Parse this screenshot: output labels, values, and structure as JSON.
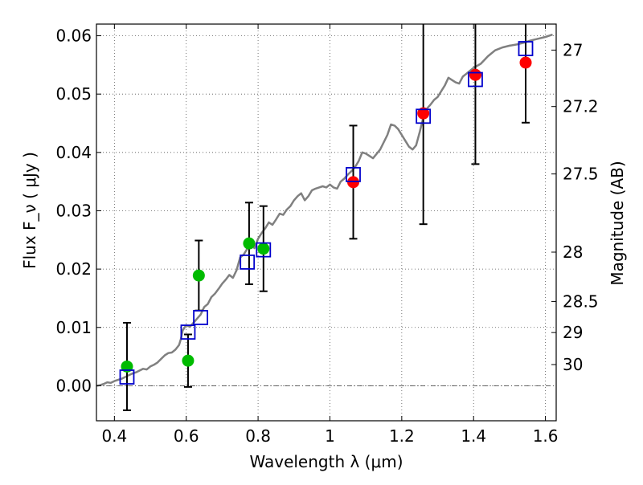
{
  "chart_data": {
    "type": "scatter",
    "xlabel": "Wavelength  λ (μm)",
    "ylabel": "Flux  F_ν  ( μJy )",
    "y2label": "Magnitude (AB)",
    "xlim": [
      0.35,
      1.63
    ],
    "ylim": [
      -0.006,
      0.062
    ],
    "grid": true,
    "x_ticks": [
      {
        "value": 0.4,
        "label": "0.4"
      },
      {
        "value": 0.6,
        "label": "0.6"
      },
      {
        "value": 0.8,
        "label": "0.8"
      },
      {
        "value": 1.0,
        "label": "1"
      },
      {
        "value": 1.2,
        "label": "1.2"
      },
      {
        "value": 1.4,
        "label": "1.4"
      },
      {
        "value": 1.6,
        "label": "1.6"
      }
    ],
    "y_ticks": [
      {
        "value": 0.0,
        "label": "0.00"
      },
      {
        "value": 0.01,
        "label": "0.01"
      },
      {
        "value": 0.02,
        "label": "0.02"
      },
      {
        "value": 0.03,
        "label": "0.03"
      },
      {
        "value": 0.04,
        "label": "0.04"
      },
      {
        "value": 0.05,
        "label": "0.05"
      },
      {
        "value": 0.06,
        "label": "0.06"
      }
    ],
    "y2_ticks": [
      {
        "value": 27,
        "label": "27"
      },
      {
        "value": 27.2,
        "label": "27.2"
      },
      {
        "value": 27.5,
        "label": "27.5"
      },
      {
        "value": 28,
        "label": "28"
      },
      {
        "value": 28.5,
        "label": "28.5"
      },
      {
        "value": 29,
        "label": "29"
      },
      {
        "value": 30,
        "label": "30"
      }
    ],
    "model_sed": {
      "color": "#808080",
      "x": [
        0.35,
        0.36,
        0.37,
        0.38,
        0.39,
        0.4,
        0.41,
        0.42,
        0.43,
        0.44,
        0.45,
        0.46,
        0.47,
        0.48,
        0.49,
        0.5,
        0.51,
        0.52,
        0.53,
        0.54,
        0.55,
        0.56,
        0.57,
        0.58,
        0.585,
        0.59,
        0.6,
        0.61,
        0.62,
        0.63,
        0.64,
        0.65,
        0.66,
        0.67,
        0.68,
        0.69,
        0.7,
        0.71,
        0.72,
        0.73,
        0.74,
        0.75,
        0.76,
        0.77,
        0.78,
        0.79,
        0.8,
        0.81,
        0.82,
        0.83,
        0.84,
        0.85,
        0.86,
        0.87,
        0.88,
        0.89,
        0.9,
        0.91,
        0.92,
        0.93,
        0.94,
        0.95,
        0.96,
        0.97,
        0.98,
        0.99,
        1.0,
        1.01,
        1.02,
        1.03,
        1.04,
        1.05,
        1.06,
        1.07,
        1.08,
        1.09,
        1.1,
        1.12,
        1.14,
        1.16,
        1.17,
        1.18,
        1.19,
        1.2,
        1.21,
        1.22,
        1.23,
        1.24,
        1.25,
        1.26,
        1.27,
        1.28,
        1.29,
        1.3,
        1.31,
        1.32,
        1.33,
        1.34,
        1.35,
        1.36,
        1.37,
        1.38,
        1.39,
        1.4,
        1.42,
        1.44,
        1.46,
        1.48,
        1.5,
        1.52,
        1.54,
        1.56,
        1.58,
        1.6,
        1.62
      ],
      "y": [
        0.0,
        0.0001,
        0.0003,
        0.0006,
        0.0005,
        0.0008,
        0.001,
        0.0012,
        0.0015,
        0.0018,
        0.0021,
        0.0023,
        0.0026,
        0.0029,
        0.0028,
        0.0033,
        0.0036,
        0.004,
        0.0046,
        0.0052,
        0.0056,
        0.0057,
        0.0062,
        0.007,
        0.008,
        0.0095,
        0.0104,
        0.0101,
        0.0108,
        0.0115,
        0.0122,
        0.0135,
        0.014,
        0.0152,
        0.0158,
        0.0166,
        0.0175,
        0.0182,
        0.019,
        0.0185,
        0.0198,
        0.022,
        0.0225,
        0.0235,
        0.0243,
        0.0236,
        0.0252,
        0.0262,
        0.027,
        0.028,
        0.0276,
        0.0285,
        0.0295,
        0.0293,
        0.0302,
        0.0308,
        0.0318,
        0.0325,
        0.033,
        0.0318,
        0.0325,
        0.0335,
        0.0338,
        0.034,
        0.0342,
        0.034,
        0.0345,
        0.034,
        0.0338,
        0.035,
        0.0355,
        0.0362,
        0.0368,
        0.0375,
        0.0385,
        0.04,
        0.0398,
        0.039,
        0.0405,
        0.043,
        0.0448,
        0.0446,
        0.044,
        0.043,
        0.042,
        0.041,
        0.0405,
        0.0412,
        0.0435,
        0.046,
        0.0475,
        0.0482,
        0.049,
        0.0495,
        0.0505,
        0.0515,
        0.0528,
        0.0524,
        0.052,
        0.0518,
        0.053,
        0.0535,
        0.054,
        0.0545,
        0.0552,
        0.0565,
        0.0575,
        0.058,
        0.0583,
        0.0585,
        0.0588,
        0.0592,
        0.0595,
        0.0598,
        0.0602
      ]
    },
    "series": [
      {
        "marker": "filled-circle",
        "color": "#00bb00",
        "points": [
          {
            "x": 0.435,
            "y": 0.0033,
            "err": 0.0075
          },
          {
            "x": 0.605,
            "y": 0.0043,
            "err": 0.0045
          },
          {
            "x": 0.635,
            "y": 0.0189,
            "err": 0.006
          },
          {
            "x": 0.775,
            "y": 0.0244,
            "err": 0.007
          },
          {
            "x": 0.815,
            "y": 0.0235,
            "err": 0.0073
          }
        ]
      },
      {
        "marker": "filled-circle",
        "color": "#ff0000",
        "points": [
          {
            "x": 1.065,
            "y": 0.0349,
            "err": 0.0097
          },
          {
            "x": 1.26,
            "y": 0.0467,
            "err": 0.019
          },
          {
            "x": 1.405,
            "y": 0.0533,
            "err": 0.0153
          },
          {
            "x": 1.545,
            "y": 0.0554,
            "err": 0.0103
          }
        ]
      },
      {
        "marker": "open-square",
        "color": "#0000cc",
        "points": [
          {
            "x": 0.435,
            "y": 0.0015
          },
          {
            "x": 0.605,
            "y": 0.0092
          },
          {
            "x": 0.64,
            "y": 0.0117
          },
          {
            "x": 0.77,
            "y": 0.0212
          },
          {
            "x": 0.815,
            "y": 0.0233
          },
          {
            "x": 1.065,
            "y": 0.0362
          },
          {
            "x": 1.26,
            "y": 0.0462
          },
          {
            "x": 1.405,
            "y": 0.0525
          },
          {
            "x": 1.545,
            "y": 0.0578
          }
        ]
      }
    ]
  }
}
